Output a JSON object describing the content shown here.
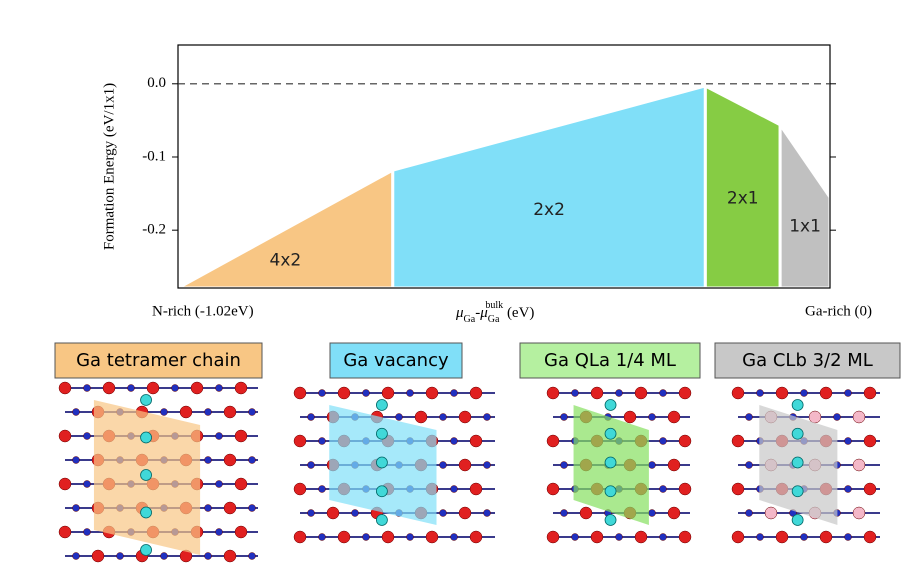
{
  "chart_data": {
    "type": "area",
    "y_label": "Formation Energy (eV/1x1)",
    "x_label": [
      "μ",
      "Ga",
      "-μ",
      "Ga",
      "bulk",
      " (eV)"
    ],
    "x_left_label": "N-rich (-1.02eV)",
    "x_right_label": "Ga-rich (0)",
    "xlim": [
      -1.02,
      0
    ],
    "ylim": [
      -0.279,
      0.053
    ],
    "yticks": [
      {
        "value": 0,
        "label": "0.0"
      },
      -0.1,
      -0.2
    ],
    "hline": 0,
    "series": [
      {
        "name": "4x2",
        "color": "#f8c684",
        "x": [
          -1.02,
          -0.684
        ],
        "values": [
          -0.279,
          -0.118
        ]
      },
      {
        "name": "2x2",
        "color": "#80dff8",
        "x": [
          -0.684,
          -0.195
        ],
        "values": [
          -0.118,
          -0.003
        ]
      },
      {
        "name": "2x1",
        "color": "#86cc44",
        "x": [
          -0.195,
          -0.078
        ],
        "values": [
          -0.003,
          -0.056
        ]
      },
      {
        "name": "1x1",
        "color": "#c0c0c0",
        "x": [
          -0.078,
          0
        ],
        "values": [
          -0.056,
          -0.155
        ]
      }
    ]
  },
  "panels": [
    {
      "label": "Ga tetramer chain",
      "color": "#f8c684"
    },
    {
      "label": "Ga vacancy",
      "color": "#80dff8"
    },
    {
      "label": "Ga QLa 1/4 ML",
      "color": "#b5f0a0"
    },
    {
      "label": "Ga CLb 3/2  ML",
      "color": "#c8c8c8"
    }
  ]
}
